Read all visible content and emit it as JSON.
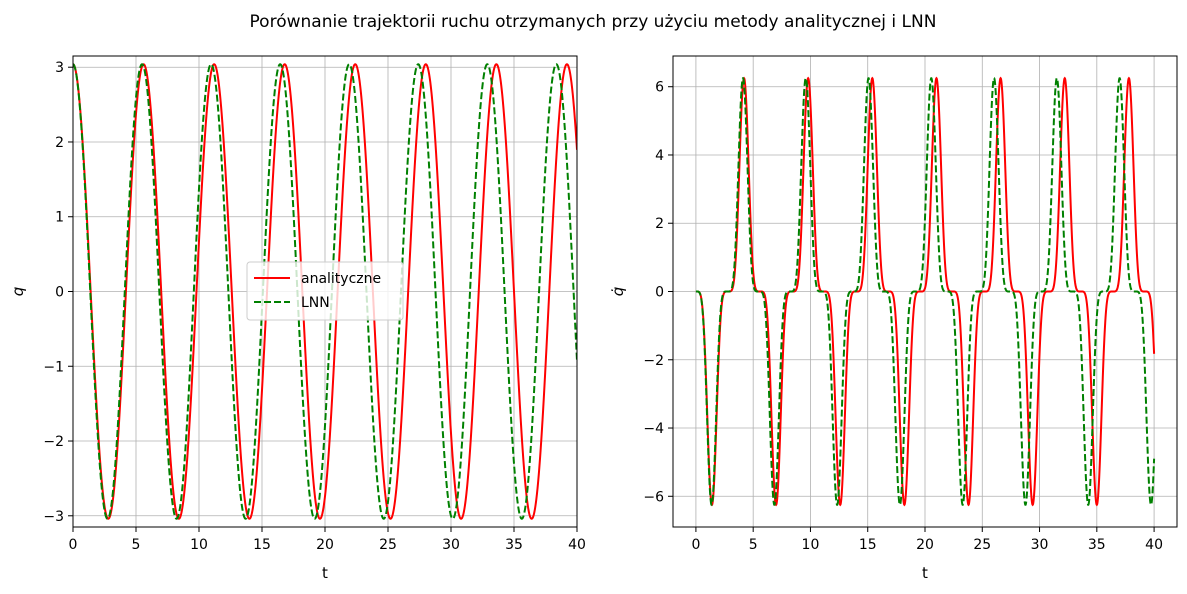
{
  "figure": {
    "title": "Porównanie trajektorii ruchu otrzymanych przy użyciu metody analitycznej i LNN"
  },
  "chart_data": [
    {
      "type": "line",
      "xlabel": "t",
      "ylabel": "q",
      "xlim": [
        0,
        40
      ],
      "ylim": [
        -3.15,
        3.15
      ],
      "xticks": [
        0,
        5,
        10,
        15,
        20,
        25,
        30,
        35,
        40
      ],
      "xtick_labels": [
        "0",
        "5",
        "10",
        "15",
        "20",
        "25",
        "30",
        "35",
        "40"
      ],
      "yticks": [
        3,
        2,
        1,
        0,
        -1,
        -2,
        -3
      ],
      "ytick_labels": [
        "3",
        "2",
        "1",
        "0",
        "−1",
        "−2",
        "−3"
      ],
      "grid": true,
      "legend": {
        "position": "center",
        "entries": [
          {
            "label": "analityczne",
            "color": "#ff0000",
            "style": "solid"
          },
          {
            "label": "LNN",
            "color": "#008000",
            "style": "dashed"
          }
        ]
      },
      "series": [
        {
          "name": "analityczne",
          "color": "#ff0000",
          "style": "solid",
          "amplitude": 3.04,
          "period": 5.6,
          "t_start": 0,
          "t_end": 40
        },
        {
          "name": "LNN",
          "color": "#008000",
          "style": "dashed",
          "amplitude": 3.04,
          "period": 5.48,
          "t_start": 0,
          "t_end": 40
        }
      ]
    },
    {
      "type": "line",
      "xlabel": "t",
      "ylabel": "q̇",
      "xlim": [
        -2,
        42
      ],
      "ylim": [
        -6.9,
        6.9
      ],
      "xticks": [
        0,
        5,
        10,
        15,
        20,
        25,
        30,
        35,
        40
      ],
      "xtick_labels": [
        "0",
        "5",
        "10",
        "15",
        "20",
        "25",
        "30",
        "35",
        "40"
      ],
      "yticks": [
        6,
        4,
        2,
        0,
        -2,
        -4,
        -6
      ],
      "ytick_labels": [
        "6",
        "4",
        "2",
        "0",
        "−2",
        "−4",
        "−6"
      ],
      "grid": true,
      "series": [
        {
          "name": "analityczne",
          "color": "#ff0000",
          "style": "solid",
          "amplitude": 6.25,
          "period": 5.6,
          "t_start": 0,
          "t_end": 40
        },
        {
          "name": "LNN",
          "color": "#008000",
          "style": "dashed",
          "amplitude": 6.25,
          "period": 5.48,
          "t_start": 0,
          "t_end": 40
        }
      ]
    }
  ]
}
